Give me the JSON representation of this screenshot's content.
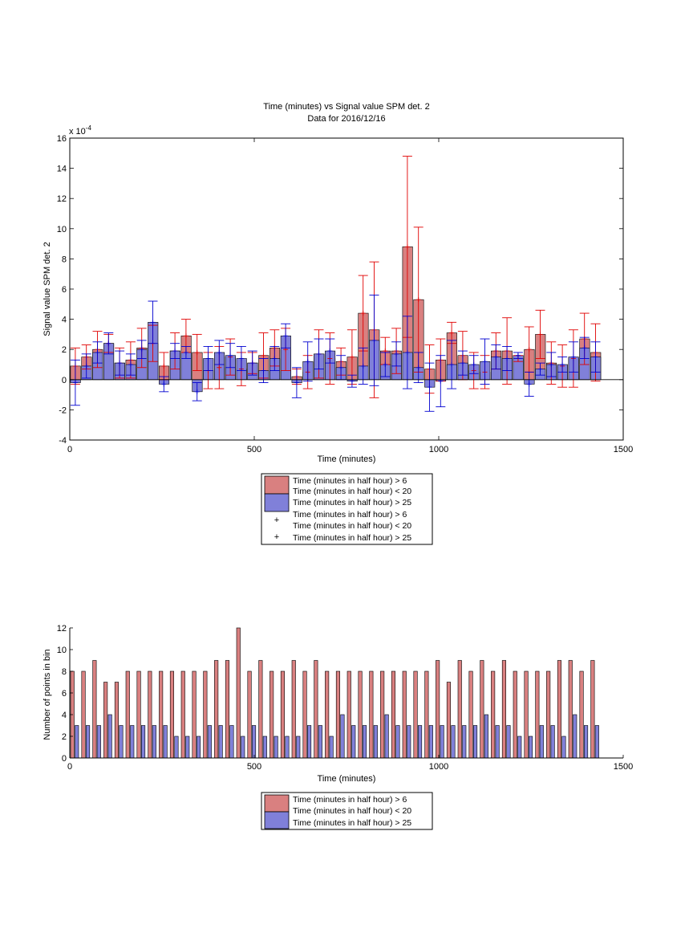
{
  "chart_data": [
    {
      "type": "bar",
      "title": "Time (minutes) vs Signal value SPM det. 2",
      "subtitle": "Data for 2016/12/16",
      "xlabel": "Time (minutes)",
      "ylabel": "Signal value SPM det. 2",
      "y_exponent": "x 10",
      "y_exponent_power": "-4",
      "xlim": [
        0,
        1500
      ],
      "ylim": [
        -4,
        16
      ],
      "xticks": [
        "0",
        "500",
        "1000",
        "1500"
      ],
      "yticks": [
        "-4",
        "-2",
        "0",
        "2",
        "4",
        "6",
        "8",
        "10",
        "12",
        "14",
        "16"
      ],
      "legend_position": "below",
      "legend": [
        "Time (minutes in half hour) > 6",
        "Time (minutes in half hour) < 20",
        "Time (minutes in half hour) > 25",
        "Time (minutes in half hour) > 6",
        "Time (minutes in half hour) < 20",
        "Time (minutes in half hour) > 25"
      ],
      "colors": {
        "red_fill": "#d98080",
        "blue_fill": "#8080d9",
        "red_line": "#e00000",
        "blue_line": "#0000d0"
      },
      "x": [
        15,
        45,
        75,
        105,
        135,
        165,
        195,
        225,
        255,
        285,
        315,
        345,
        375,
        405,
        435,
        465,
        495,
        525,
        555,
        585,
        615,
        645,
        675,
        705,
        735,
        765,
        795,
        825,
        855,
        885,
        915,
        945,
        975,
        1005,
        1035,
        1065,
        1095,
        1125,
        1155,
        1185,
        1215,
        1245,
        1275,
        1305,
        1335,
        1365,
        1395,
        1425
      ],
      "series": [
        {
          "name": "Time (minutes in half hour) > 6",
          "values": [
            0.9,
            1.5,
            2.0,
            2.4,
            1.1,
            1.3,
            2.1,
            2.4,
            0.9,
            1.9,
            2.9,
            1.8,
            0.6,
            0.8,
            1.5,
            0.7,
            1.1,
            1.6,
            2.1,
            2.0,
            0.2,
            0.5,
            1.7,
            1.4,
            1.2,
            1.5,
            4.4,
            3.3,
            1.9,
            1.9,
            8.8,
            5.3,
            0.7,
            1.3,
            3.1,
            1.6,
            0.6,
            0.5,
            1.9,
            1.9,
            1.4,
            2.0,
            3.0,
            1.1,
            0.9,
            1.4,
            2.7,
            1.8
          ],
          "err": [
            1.2,
            0.8,
            1.2,
            0.6,
            1.0,
            1.2,
            1.3,
            1.2,
            0.9,
            1.2,
            1.1,
            1.2,
            1.2,
            1.4,
            1.2,
            1.1,
            0.7,
            1.5,
            1.2,
            1.4,
            0.5,
            1.1,
            1.6,
            1.7,
            0.9,
            1.8,
            2.5,
            4.5,
            0.9,
            1.5,
            6.0,
            4.8,
            1.6,
            1.4,
            0.7,
            1.6,
            1.2,
            1.1,
            1.2,
            2.2,
            0.2,
            1.5,
            1.6,
            1.4,
            1.4,
            1.9,
            1.7,
            1.9
          ]
        },
        {
          "name": "Time (minutes in half hour) > 25",
          "values": [
            -0.2,
            0.9,
            1.8,
            2.4,
            1.1,
            1.0,
            2.0,
            3.8,
            -0.3,
            1.9,
            1.8,
            -0.8,
            1.4,
            1.8,
            1.6,
            1.4,
            1.1,
            0.6,
            1.4,
            2.9,
            -0.2,
            1.2,
            1.7,
            1.9,
            0.8,
            -0.1,
            0.9,
            2.6,
            1.0,
            1.7,
            1.8,
            0.8,
            -0.5,
            -0.1,
            1.0,
            1.1,
            1.0,
            1.2,
            1.5,
            1.4,
            1.6,
            -0.3,
            0.7,
            1.0,
            1.0,
            1.5,
            2.1,
            1.5
          ],
          "err": [
            1.5,
            0.8,
            0.7,
            0.7,
            0.8,
            0.7,
            0.6,
            1.4,
            0.5,
            0.5,
            0.4,
            0.6,
            0.8,
            0.8,
            0.8,
            0.8,
            0.8,
            0.8,
            0.8,
            0.8,
            1.0,
            1.3,
            1.0,
            0.8,
            0.8,
            0.4,
            1.2,
            3.0,
            0.8,
            0.8,
            2.4,
            1.0,
            1.6,
            1.7,
            1.6,
            0.8,
            0.6,
            1.5,
            0.8,
            0.8,
            0.2,
            0.8,
            0.4,
            0.8,
            0.5,
            1.0,
            0.7,
            1.0
          ]
        }
      ]
    },
    {
      "type": "bar",
      "xlabel": "Time (minutes)",
      "ylabel": "Number of points in bin",
      "xlim": [
        0,
        1500
      ],
      "ylim": [
        0,
        12
      ],
      "xticks": [
        "0",
        "500",
        "1000",
        "1500"
      ],
      "yticks": [
        "0",
        "2",
        "4",
        "6",
        "8",
        "10",
        "12"
      ],
      "legend_position": "below",
      "legend": [
        "Time (minutes in half hour) > 6",
        "Time (minutes in half hour) < 20",
        "Time (minutes in half hour) > 25"
      ],
      "colors": {
        "red_fill": "#d98080",
        "blue_fill": "#8080d9"
      },
      "x": [
        0,
        30,
        60,
        90,
        120,
        150,
        180,
        210,
        240,
        270,
        300,
        330,
        360,
        390,
        420,
        450,
        480,
        510,
        540,
        570,
        600,
        630,
        660,
        690,
        720,
        750,
        780,
        810,
        840,
        870,
        900,
        930,
        960,
        990,
        1020,
        1050,
        1080,
        1110,
        1140,
        1170,
        1200,
        1230,
        1260,
        1290,
        1320,
        1350,
        1380,
        1410
      ],
      "series": [
        {
          "name": "Time (minutes in half hour) > 6",
          "values": [
            8,
            8,
            9,
            7,
            7,
            8,
            8,
            8,
            8,
            8,
            8,
            8,
            8,
            9,
            9,
            12,
            8,
            9,
            8,
            8,
            9,
            8,
            9,
            8,
            8,
            8,
            8,
            8,
            8,
            8,
            8,
            8,
            8,
            9,
            7,
            9,
            8,
            9,
            8,
            9,
            8,
            8,
            8,
            8,
            9,
            9,
            8,
            9
          ]
        },
        {
          "name": "Time (minutes in half hour) > 25",
          "values": [
            3,
            3,
            3,
            4,
            3,
            3,
            3,
            3,
            3,
            2,
            2,
            2,
            3,
            3,
            3,
            2,
            3,
            2,
            2,
            2,
            2,
            3,
            3,
            2,
            4,
            3,
            3,
            3,
            4,
            3,
            3,
            3,
            3,
            3,
            3,
            3,
            3,
            4,
            3,
            3,
            2,
            2,
            3,
            3,
            2,
            4,
            3,
            3
          ]
        }
      ]
    }
  ]
}
